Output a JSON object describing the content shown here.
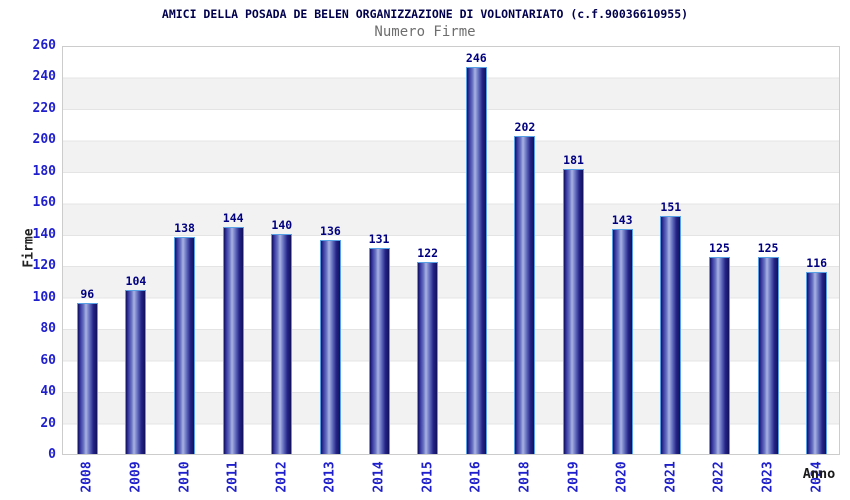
{
  "chart_data": {
    "type": "bar",
    "title": "AMICI DELLA POSADA DE BELEN ORGANIZZAZIONE DI VOLONTARIATO (c.f.90036610955)",
    "subtitle": "Numero Firme",
    "xlabel": "Anno",
    "ylabel": "Firme",
    "categories": [
      "2008",
      "2009",
      "2010",
      "2011",
      "2012",
      "2013",
      "2014",
      "2015",
      "2016",
      "2018",
      "2019",
      "2020",
      "2021",
      "2022",
      "2023",
      "2024"
    ],
    "values": [
      96,
      104,
      138,
      144,
      140,
      136,
      131,
      122,
      246,
      202,
      181,
      143,
      151,
      125,
      125,
      116
    ],
    "ylim": [
      0,
      260
    ],
    "ytick_step": 20,
    "grid": "horizontal-banded",
    "legend": "none",
    "colors": {
      "bar_border": "#58a0e6",
      "bar_dark": "#10105c",
      "bar_light": "#aab3e2",
      "tick_label": "#1f1fcc",
      "value_label": "#000080",
      "title": "#00004d",
      "subtitle": "#6e6e6e",
      "axis_label": "#1a1a1a",
      "band_gray": "#f2f2f2",
      "gridline": "#e4e4e4",
      "plot_border": "#cccccc"
    }
  }
}
